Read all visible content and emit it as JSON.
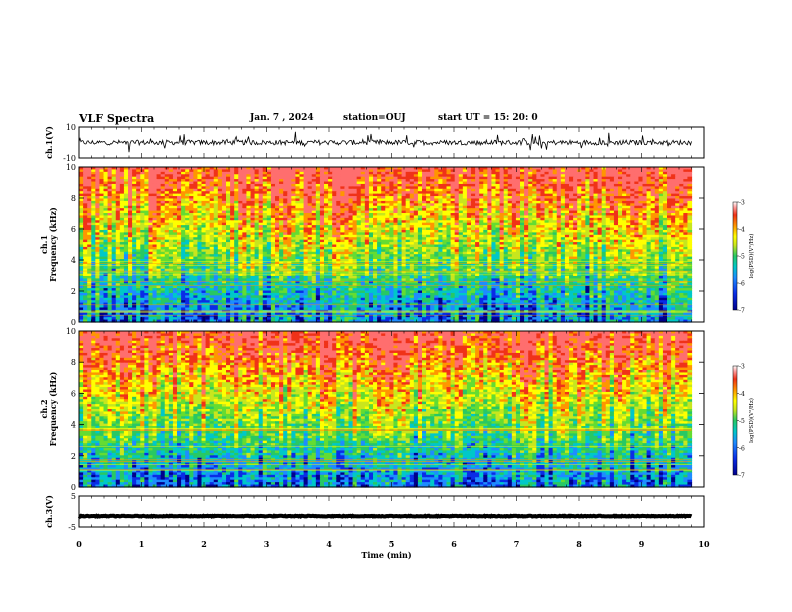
{
  "header": {
    "title": "VLF Spectra",
    "date": "Jan. 7 , 2024",
    "station": "station=OUJ",
    "start": "start UT =  15: 20: 0"
  },
  "chart_data": [
    {
      "type": "line",
      "panel": "waveform",
      "ylabel": "ch.1(V)",
      "ylim": [
        -10,
        10
      ],
      "yticks": [
        "10",
        "-10"
      ],
      "xlim": [
        0,
        10
      ],
      "trace_mean": 0,
      "trace_color": "#000000"
    },
    {
      "type": "heatmap",
      "panel": "spectrogram",
      "ylabel": "ch.1\nFrequency (kHz)",
      "ylim": [
        0,
        10
      ],
      "yticks": [
        "0",
        "2",
        "4",
        "6",
        "8",
        "10"
      ],
      "xlim": [
        0,
        10
      ],
      "data_end_min": 9.8,
      "colorbar": {
        "label": "log(PSD)(V²/Hz)",
        "range": [
          -7,
          -3
        ],
        "ticks": [
          "-3",
          "-4",
          "-5",
          "-6",
          "-7"
        ]
      }
    },
    {
      "type": "heatmap",
      "panel": "spectrogram",
      "ylabel": "ch.2\nFrequency (kHz)",
      "ylim": [
        0,
        10
      ],
      "yticks": [
        "0",
        "2",
        "4",
        "6",
        "8",
        "10"
      ],
      "xlim": [
        0,
        10
      ],
      "data_end_min": 9.8,
      "colorbar": {
        "label": "log(PSD)(V²/Hz)",
        "range": [
          -7,
          -3
        ],
        "ticks": [
          "-3",
          "-4",
          "-5",
          "-6",
          "-7"
        ]
      }
    },
    {
      "type": "line",
      "panel": "waveform",
      "ylabel": "ch.3(V)",
      "ylim": [
        -5,
        5
      ],
      "yticks": [
        "5",
        "-5"
      ],
      "xlim": [
        0,
        10
      ],
      "trace_mean": -1.5,
      "trace_color": "#000000"
    }
  ],
  "xaxis": {
    "label": "Time (min)",
    "ticks": [
      "0",
      "1",
      "2",
      "3",
      "4",
      "5",
      "6",
      "7",
      "8",
      "9",
      "10"
    ]
  },
  "colormap": [
    "#00008c",
    "#0a2ce6",
    "#1e8cff",
    "#00c8c8",
    "#28c864",
    "#64dc32",
    "#c8e61e",
    "#ffff00",
    "#ff9600",
    "#f03218",
    "#ff6e6e",
    "#ffffff"
  ]
}
